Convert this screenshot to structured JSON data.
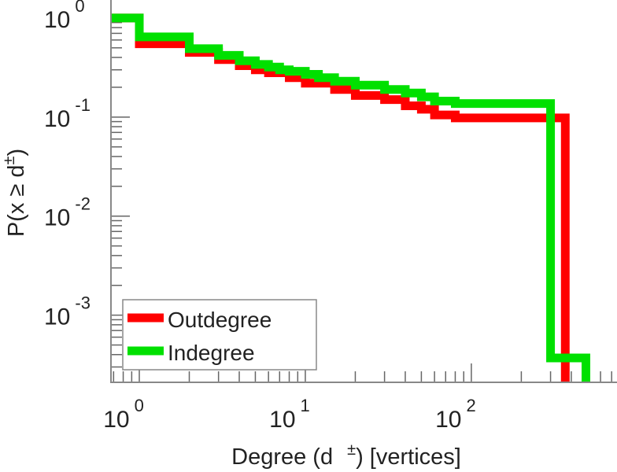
{
  "chart_data": {
    "type": "line",
    "xscale": "log",
    "yscale": "log",
    "xlabel": "Degree (d ±) [vertices]",
    "xlabel_parts": {
      "pre": "Degree (d",
      "sup": "±",
      "post": ") [vertices]"
    },
    "ylabel_parts": {
      "pre": "P(x ≥ d",
      "sup": "±",
      "post": ")"
    },
    "xlim": [
      0.675,
      754
    ],
    "ylim": [
      0.00021,
      1.52
    ],
    "xticks": [
      {
        "value": 1,
        "base": "10",
        "exp": "0"
      },
      {
        "value": 10,
        "base": "10",
        "exp": "1"
      },
      {
        "value": 100,
        "base": "10",
        "exp": "2"
      }
    ],
    "yticks": [
      {
        "value": 1,
        "base": "10",
        "exp": "0"
      },
      {
        "value": 0.1,
        "base": "10",
        "exp": "-1"
      },
      {
        "value": 0.01,
        "base": "10",
        "exp": "-2"
      },
      {
        "value": 0.001,
        "base": "10",
        "exp": "-3"
      }
    ],
    "legend_position": "bottom-left",
    "grid": false,
    "step": "post",
    "series": [
      {
        "name": "Outdegree",
        "color": "#ff0000",
        "points": [
          [
            0.675,
            1
          ],
          [
            1,
            0.55
          ],
          [
            2,
            0.45
          ],
          [
            3,
            0.38
          ],
          [
            4,
            0.33
          ],
          [
            5,
            0.3
          ],
          [
            6,
            0.28
          ],
          [
            8,
            0.25
          ],
          [
            10,
            0.22
          ],
          [
            15,
            0.19
          ],
          [
            20,
            0.165
          ],
          [
            30,
            0.15
          ],
          [
            40,
            0.13
          ],
          [
            50,
            0.12
          ],
          [
            60,
            0.105
          ],
          [
            80,
            0.098
          ],
          [
            368,
            0
          ]
        ]
      },
      {
        "name": "Indegree",
        "color": "#00e000",
        "points": [
          [
            0.675,
            1
          ],
          [
            1,
            0.645
          ],
          [
            2,
            0.49
          ],
          [
            3,
            0.42
          ],
          [
            4,
            0.37
          ],
          [
            5,
            0.34
          ],
          [
            6,
            0.32
          ],
          [
            7,
            0.3
          ],
          [
            8,
            0.29
          ],
          [
            10,
            0.27
          ],
          [
            12,
            0.25
          ],
          [
            15,
            0.23
          ],
          [
            20,
            0.21
          ],
          [
            30,
            0.19
          ],
          [
            40,
            0.175
          ],
          [
            50,
            0.16
          ],
          [
            60,
            0.145
          ],
          [
            80,
            0.137
          ],
          [
            300,
            0.00037
          ],
          [
            490,
            0
          ]
        ]
      }
    ]
  }
}
